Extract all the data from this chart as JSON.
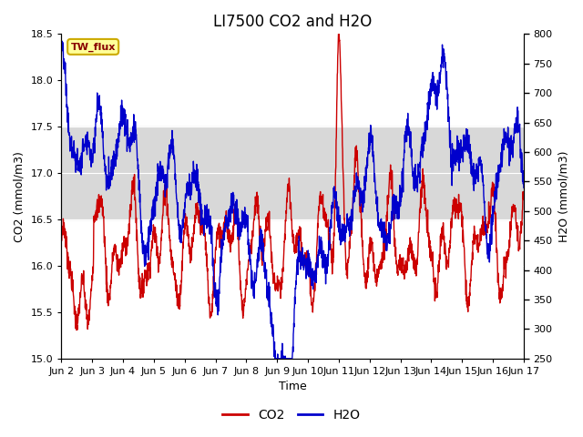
{
  "title": "LI7500 CO2 and H2O",
  "xlabel": "Time",
  "ylabel_left": "CO2 (mmol/m3)",
  "ylabel_right": "H2O (mmol/m3)",
  "ylim_left": [
    15.0,
    18.5
  ],
  "ylim_right": [
    250,
    800
  ],
  "yticks_left": [
    15.0,
    15.5,
    16.0,
    16.5,
    17.0,
    17.5,
    18.0,
    18.5
  ],
  "yticks_right": [
    250,
    300,
    350,
    400,
    450,
    500,
    550,
    600,
    650,
    700,
    750,
    800
  ],
  "xtick_labels": [
    "Jun 2",
    "Jun 3",
    "Jun 4",
    "Jun 5",
    "Jun 6",
    "Jun 7",
    "Jun 8",
    "Jun 9",
    "Jun 10",
    "Jun 11",
    "Jun 12",
    "Jun 13",
    "Jun 14",
    "Jun 15",
    "Jun 16",
    "Jun 17"
  ],
  "shaded_band_ylow": 16.5,
  "shaded_band_yhigh": 17.5,
  "shaded_band_color": "#d8d8d8",
  "bg_color": "#ffffff",
  "plot_bg_color": "#ffffff",
  "line_co2_color": "#cc0000",
  "line_h2o_color": "#0000cc",
  "line_width": 1.0,
  "tw_flux_label": "TW_flux",
  "tw_flux_fg": "#880000",
  "tw_flux_bg": "#ffff99",
  "tw_flux_border": "#ccaa00",
  "legend_co2": "CO2",
  "legend_h2o": "H2O",
  "title_fontsize": 12,
  "axis_label_fontsize": 9,
  "tick_fontsize": 8,
  "legend_fontsize": 10
}
